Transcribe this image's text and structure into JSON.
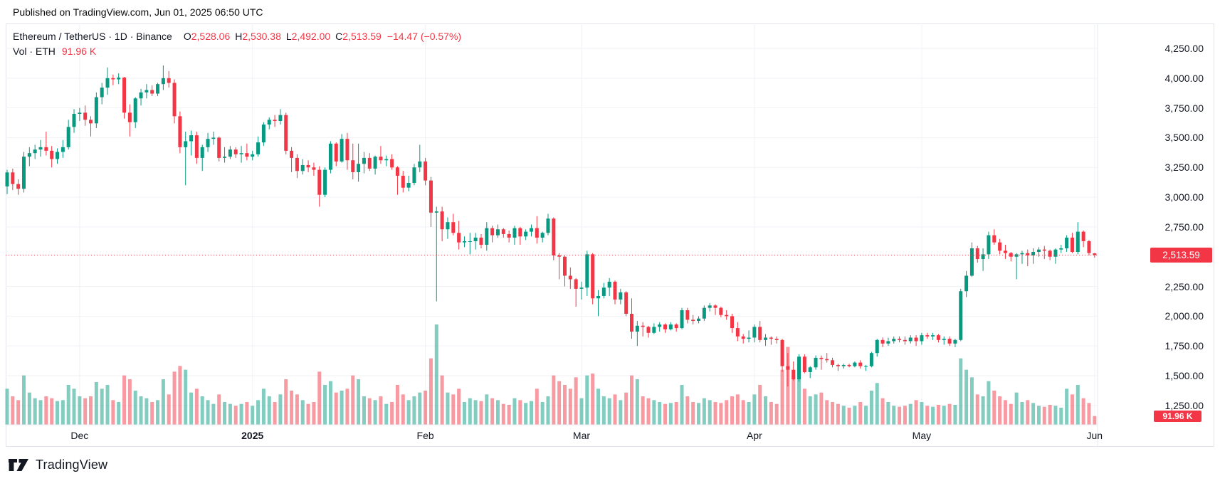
{
  "header": {
    "published": "Published on TradingView.com, Jun 01, 2025 06:50 UTC"
  },
  "legend": {
    "title": "Ethereum / TetherUS · 1D · Binance",
    "items": [
      {
        "label": "O",
        "value": "2,528.06"
      },
      {
        "label": "H",
        "value": "2,530.38"
      },
      {
        "label": "L",
        "value": "2,492.00"
      },
      {
        "label": "C",
        "value": "2,513.59"
      }
    ],
    "change": "−14.47 (−0.57%)",
    "volume_label": "Vol · ETH",
    "volume_value": "91.96 K"
  },
  "price_axis": {
    "ticks": [
      {
        "label": "4,250.00",
        "value": 4250
      },
      {
        "label": "4,000.00",
        "value": 4000
      },
      {
        "label": "3,750.00",
        "value": 3750
      },
      {
        "label": "3,500.00",
        "value": 3500
      },
      {
        "label": "3,250.00",
        "value": 3250
      },
      {
        "label": "3,000.00",
        "value": 3000
      },
      {
        "label": "2,750.00",
        "value": 2750
      },
      {
        "label": "2,250.00",
        "value": 2250
      },
      {
        "label": "2,000.00",
        "value": 2000
      },
      {
        "label": "1,750.00",
        "value": 1750
      },
      {
        "label": "1,500.00",
        "value": 1500
      },
      {
        "label": "1,250.00",
        "value": 1250
      }
    ],
    "last_price_label": "2,513.59",
    "last_price": 2513.59,
    "volume_badge": "91.96 K"
  },
  "time_axis": {
    "months": [
      {
        "label": "Dec",
        "candle_index": 13,
        "bold": false
      },
      {
        "label": "2025",
        "candle_index": 44,
        "bold": true
      },
      {
        "label": "Feb",
        "candle_index": 75,
        "bold": false
      },
      {
        "label": "Mar",
        "candle_index": 103,
        "bold": false
      },
      {
        "label": "Apr",
        "candle_index": 134,
        "bold": false
      },
      {
        "label": "May",
        "candle_index": 164,
        "bold": false
      },
      {
        "label": "Jun",
        "candle_index": 195,
        "bold": false
      }
    ]
  },
  "footer": {
    "brand": "TradingView"
  },
  "colors": {
    "up": "#089981",
    "down": "#F23645",
    "vol_up": "rgba(8,153,129,0.5)",
    "vol_down": "rgba(242,54,69,0.5)",
    "grid": "#F0F2F6",
    "border": "#E6E9EF",
    "last_price_line": "#F23645",
    "badge": "#F23645",
    "axis_text": "#131722"
  },
  "chart_data": {
    "type": "candlestick",
    "title": "Ethereum / TetherUS",
    "exchange": "Binance",
    "interval": "1D",
    "start_date": "2024-11-18",
    "end_date": "2025-06-01",
    "ylim": [
      1100,
      4460
    ],
    "last_close": 2513.59,
    "last_change": -14.47,
    "last_change_pct": -0.57,
    "last_volume_k": 91.96,
    "candle_fields": [
      "open",
      "high",
      "low",
      "close",
      "volume_k_eth"
    ],
    "candles": [
      [
        3090,
        3230,
        3025,
        3208,
        380
      ],
      [
        3208,
        3240,
        3060,
        3110,
        300
      ],
      [
        3110,
        3150,
        3020,
        3070,
        260
      ],
      [
        3070,
        3380,
        3040,
        3340,
        520
      ],
      [
        3340,
        3420,
        3260,
        3370,
        340
      ],
      [
        3370,
        3440,
        3320,
        3400,
        280
      ],
      [
        3400,
        3480,
        3340,
        3420,
        260
      ],
      [
        3420,
        3550,
        3350,
        3390,
        300
      ],
      [
        3390,
        3430,
        3250,
        3320,
        280
      ],
      [
        3320,
        3410,
        3280,
        3380,
        250
      ],
      [
        3380,
        3480,
        3330,
        3420,
        260
      ],
      [
        3420,
        3650,
        3400,
        3590,
        420
      ],
      [
        3590,
        3740,
        3540,
        3700,
        380
      ],
      [
        3700,
        3750,
        3640,
        3710,
        300
      ],
      [
        3710,
        3770,
        3600,
        3650,
        280
      ],
      [
        3650,
        3680,
        3510,
        3620,
        300
      ],
      [
        3620,
        3880,
        3580,
        3840,
        450
      ],
      [
        3840,
        3960,
        3780,
        3920,
        380
      ],
      [
        3920,
        4090,
        3860,
        4000,
        420
      ],
      [
        4000,
        4030,
        3940,
        3990,
        260
      ],
      [
        3990,
        4040,
        3950,
        4005,
        240
      ],
      [
        4005,
        4010,
        3660,
        3710,
        520
      ],
      [
        3710,
        3780,
        3510,
        3630,
        480
      ],
      [
        3630,
        3840,
        3580,
        3830,
        360
      ],
      [
        3830,
        3910,
        3770,
        3880,
        300
      ],
      [
        3880,
        3950,
        3830,
        3900,
        280
      ],
      [
        3900,
        3940,
        3850,
        3870,
        240
      ],
      [
        3870,
        3960,
        3850,
        3950,
        260
      ],
      [
        3950,
        4107,
        3900,
        4000,
        480
      ],
      [
        4000,
        4060,
        3920,
        3960,
        320
      ],
      [
        3960,
        3990,
        3620,
        3680,
        560
      ],
      [
        3680,
        3720,
        3370,
        3420,
        620
      ],
      [
        3420,
        3550,
        3100,
        3470,
        580
      ],
      [
        3470,
        3560,
        3350,
        3520,
        340
      ],
      [
        3520,
        3550,
        3280,
        3330,
        380
      ],
      [
        3330,
        3440,
        3220,
        3420,
        300
      ],
      [
        3420,
        3540,
        3380,
        3490,
        260
      ],
      [
        3490,
        3550,
        3440,
        3500,
        220
      ],
      [
        3500,
        3510,
        3300,
        3330,
        320
      ],
      [
        3330,
        3420,
        3290,
        3340,
        240
      ],
      [
        3340,
        3430,
        3320,
        3400,
        220
      ],
      [
        3400,
        3420,
        3330,
        3360,
        200
      ],
      [
        3360,
        3430,
        3290,
        3370,
        220
      ],
      [
        3370,
        3450,
        3310,
        3340,
        240
      ],
      [
        3340,
        3390,
        3310,
        3360,
        200
      ],
      [
        3360,
        3510,
        3340,
        3460,
        260
      ],
      [
        3460,
        3630,
        3430,
        3610,
        380
      ],
      [
        3610,
        3670,
        3570,
        3650,
        300
      ],
      [
        3650,
        3690,
        3590,
        3640,
        240
      ],
      [
        3640,
        3740,
        3610,
        3690,
        320
      ],
      [
        3690,
        3710,
        3360,
        3390,
        480
      ],
      [
        3390,
        3420,
        3210,
        3330,
        360
      ],
      [
        3330,
        3360,
        3160,
        3220,
        320
      ],
      [
        3220,
        3320,
        3190,
        3270,
        260
      ],
      [
        3270,
        3310,
        3210,
        3250,
        220
      ],
      [
        3250,
        3290,
        3180,
        3230,
        240
      ],
      [
        3230,
        3260,
        2920,
        3020,
        560
      ],
      [
        3020,
        3250,
        3000,
        3230,
        420
      ],
      [
        3230,
        3470,
        3200,
        3450,
        460
      ],
      [
        3450,
        3460,
        3260,
        3300,
        340
      ],
      [
        3300,
        3530,
        3290,
        3490,
        360
      ],
      [
        3490,
        3540,
        3230,
        3310,
        380
      ],
      [
        3310,
        3450,
        3150,
        3210,
        520
      ],
      [
        3210,
        3450,
        3130,
        3280,
        480
      ],
      [
        3280,
        3380,
        3200,
        3330,
        300
      ],
      [
        3330,
        3370,
        3220,
        3240,
        280
      ],
      [
        3240,
        3350,
        3190,
        3340,
        260
      ],
      [
        3340,
        3430,
        3280,
        3310,
        300
      ],
      [
        3310,
        3350,
        3260,
        3320,
        220
      ],
      [
        3320,
        3360,
        3230,
        3250,
        240
      ],
      [
        3250,
        3260,
        3020,
        3180,
        420
      ],
      [
        3180,
        3220,
        3040,
        3080,
        320
      ],
      [
        3080,
        3180,
        3050,
        3120,
        260
      ],
      [
        3120,
        3280,
        3100,
        3250,
        300
      ],
      [
        3250,
        3440,
        3210,
        3300,
        340
      ],
      [
        3300,
        3330,
        3100,
        3140,
        360
      ],
      [
        3140,
        3170,
        2750,
        2870,
        700
      ],
      [
        2870,
        2920,
        2125,
        2880,
        1057
      ],
      [
        2880,
        2920,
        2630,
        2730,
        520
      ],
      [
        2730,
        2830,
        2650,
        2790,
        340
      ],
      [
        2790,
        2860,
        2680,
        2700,
        320
      ],
      [
        2700,
        2800,
        2560,
        2620,
        380
      ],
      [
        2620,
        2670,
        2580,
        2630,
        240
      ],
      [
        2630,
        2700,
        2520,
        2630,
        280
      ],
      [
        2630,
        2700,
        2560,
        2660,
        260
      ],
      [
        2660,
        2690,
        2570,
        2600,
        250
      ],
      [
        2600,
        2790,
        2550,
        2740,
        320
      ],
      [
        2740,
        2760,
        2620,
        2680,
        280
      ],
      [
        2680,
        2770,
        2660,
        2730,
        260
      ],
      [
        2730,
        2740,
        2660,
        2690,
        220
      ],
      [
        2690,
        2720,
        2620,
        2660,
        210
      ],
      [
        2660,
        2760,
        2600,
        2740,
        280
      ],
      [
        2740,
        2750,
        2600,
        2670,
        260
      ],
      [
        2670,
        2730,
        2640,
        2710,
        230
      ],
      [
        2710,
        2770,
        2670,
        2740,
        250
      ],
      [
        2740,
        2840,
        2610,
        2660,
        380
      ],
      [
        2660,
        2710,
        2620,
        2700,
        240
      ],
      [
        2700,
        2860,
        2680,
        2820,
        300
      ],
      [
        2820,
        2830,
        2470,
        2510,
        520
      ],
      [
        2510,
        2530,
        2310,
        2500,
        460
      ],
      [
        2500,
        2510,
        2250,
        2340,
        420
      ],
      [
        2340,
        2410,
        2230,
        2310,
        380
      ],
      [
        2310,
        2320,
        2080,
        2230,
        500
      ],
      [
        2230,
        2290,
        2140,
        2240,
        280
      ],
      [
        2240,
        2550,
        2170,
        2520,
        520
      ],
      [
        2520,
        2530,
        2100,
        2150,
        540
      ],
      [
        2150,
        2220,
        2000,
        2170,
        380
      ],
      [
        2170,
        2280,
        2150,
        2240,
        300
      ],
      [
        2240,
        2320,
        2170,
        2290,
        280
      ],
      [
        2290,
        2300,
        2100,
        2140,
        320
      ],
      [
        2140,
        2230,
        2100,
        2200,
        260
      ],
      [
        2200,
        2210,
        2000,
        2020,
        340
      ],
      [
        2020,
        2150,
        1810,
        1870,
        520
      ],
      [
        1870,
        1960,
        1750,
        1920,
        480
      ],
      [
        1920,
        1950,
        1830,
        1910,
        300
      ],
      [
        1910,
        1920,
        1820,
        1860,
        280
      ],
      [
        1860,
        1940,
        1850,
        1910,
        260
      ],
      [
        1910,
        1950,
        1870,
        1930,
        240
      ],
      [
        1930,
        1940,
        1860,
        1890,
        220
      ],
      [
        1890,
        1950,
        1880,
        1930,
        230
      ],
      [
        1930,
        1940,
        1870,
        1900,
        240
      ],
      [
        1900,
        2070,
        1890,
        2050,
        420
      ],
      [
        2050,
        2070,
        1940,
        1970,
        300
      ],
      [
        1970,
        2010,
        1930,
        1960,
        240
      ],
      [
        1960,
        2000,
        1940,
        1980,
        230
      ],
      [
        1980,
        2090,
        1960,
        2070,
        280
      ],
      [
        2070,
        2110,
        2040,
        2090,
        260
      ],
      [
        2090,
        2100,
        2010,
        2070,
        240
      ],
      [
        2070,
        2080,
        1990,
        2010,
        230
      ],
      [
        2010,
        2050,
        1970,
        2000,
        260
      ],
      [
        2000,
        2020,
        1860,
        1900,
        300
      ],
      [
        1900,
        1950,
        1790,
        1830,
        320
      ],
      [
        1830,
        1850,
        1770,
        1810,
        260
      ],
      [
        1810,
        1880,
        1780,
        1820,
        240
      ],
      [
        1820,
        1930,
        1780,
        1910,
        320
      ],
      [
        1910,
        1960,
        1780,
        1800,
        420
      ],
      [
        1800,
        1850,
        1750,
        1820,
        300
      ],
      [
        1820,
        1830,
        1760,
        1810,
        240
      ],
      [
        1810,
        1830,
        1770,
        1800,
        220
      ],
      [
        1800,
        1810,
        1530,
        1580,
        580
      ],
      [
        1580,
        1690,
        1410,
        1550,
        820
      ],
      [
        1550,
        1620,
        1460,
        1470,
        520
      ],
      [
        1470,
        1680,
        1450,
        1660,
        640
      ],
      [
        1660,
        1680,
        1520,
        1530,
        380
      ],
      [
        1530,
        1580,
        1480,
        1570,
        300
      ],
      [
        1570,
        1670,
        1550,
        1650,
        320
      ],
      [
        1650,
        1670,
        1550,
        1640,
        340
      ],
      [
        1640,
        1690,
        1610,
        1630,
        260
      ],
      [
        1630,
        1650,
        1570,
        1590,
        240
      ],
      [
        1590,
        1600,
        1540,
        1580,
        220
      ],
      [
        1580,
        1600,
        1560,
        1590,
        200
      ],
      [
        1590,
        1600,
        1570,
        1580,
        180
      ],
      [
        1580,
        1620,
        1570,
        1610,
        200
      ],
      [
        1610,
        1630,
        1560,
        1580,
        240
      ],
      [
        1580,
        1590,
        1540,
        1580,
        200
      ],
      [
        1580,
        1700,
        1570,
        1690,
        360
      ],
      [
        1690,
        1810,
        1660,
        1800,
        440
      ],
      [
        1800,
        1820,
        1740,
        1770,
        280
      ],
      [
        1770,
        1820,
        1750,
        1790,
        240
      ],
      [
        1790,
        1830,
        1770,
        1810,
        200
      ],
      [
        1810,
        1830,
        1780,
        1800,
        190
      ],
      [
        1800,
        1830,
        1760,
        1790,
        200
      ],
      [
        1790,
        1840,
        1770,
        1820,
        220
      ],
      [
        1820,
        1840,
        1750,
        1790,
        260
      ],
      [
        1790,
        1860,
        1760,
        1840,
        240
      ],
      [
        1840,
        1860,
        1810,
        1830,
        200
      ],
      [
        1830,
        1860,
        1800,
        1840,
        190
      ],
      [
        1840,
        1850,
        1780,
        1800,
        210
      ],
      [
        1800,
        1830,
        1760,
        1810,
        200
      ],
      [
        1810,
        1830,
        1750,
        1770,
        220
      ],
      [
        1770,
        1810,
        1740,
        1800,
        210
      ],
      [
        1800,
        2230,
        1790,
        2210,
        700
      ],
      [
        2210,
        2380,
        2160,
        2340,
        580
      ],
      [
        2340,
        2620,
        2330,
        2570,
        500
      ],
      [
        2570,
        2590,
        2450,
        2480,
        320
      ],
      [
        2480,
        2570,
        2380,
        2520,
        300
      ],
      [
        2520,
        2710,
        2480,
        2680,
        460
      ],
      [
        2680,
        2730,
        2600,
        2620,
        360
      ],
      [
        2620,
        2650,
        2520,
        2550,
        300
      ],
      [
        2550,
        2600,
        2480,
        2530,
        260
      ],
      [
        2530,
        2540,
        2460,
        2500,
        220
      ],
      [
        2500,
        2530,
        2310,
        2520,
        340
      ],
      [
        2520,
        2550,
        2440,
        2530,
        240
      ],
      [
        2530,
        2560,
        2420,
        2510,
        260
      ],
      [
        2510,
        2570,
        2440,
        2540,
        230
      ],
      [
        2540,
        2580,
        2500,
        2560,
        200
      ],
      [
        2560,
        2590,
        2480,
        2550,
        190
      ],
      [
        2550,
        2560,
        2470,
        2500,
        210
      ],
      [
        2500,
        2570,
        2440,
        2560,
        200
      ],
      [
        2560,
        2600,
        2530,
        2570,
        180
      ],
      [
        2570,
        2680,
        2540,
        2660,
        380
      ],
      [
        2660,
        2700,
        2530,
        2540,
        320
      ],
      [
        2540,
        2790,
        2520,
        2710,
        420
      ],
      [
        2710,
        2720,
        2580,
        2630,
        280
      ],
      [
        2630,
        2640,
        2510,
        2530,
        230
      ],
      [
        2528.06,
        2530.38,
        2492,
        2513.59,
        91.96
      ]
    ]
  }
}
